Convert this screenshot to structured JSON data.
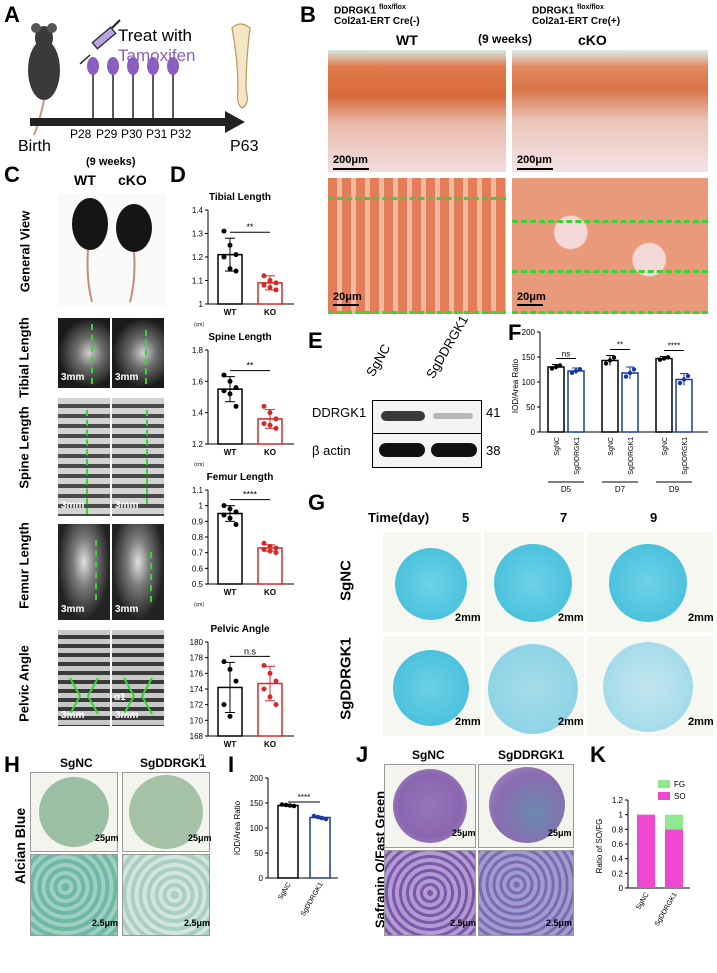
{
  "panels": {
    "A": {
      "label": "A",
      "title_line1": "Treat with",
      "title_line2": "Tamoxifen",
      "days": [
        "P28",
        "P29",
        "P30",
        "P31",
        "P32"
      ],
      "birth": "Birth",
      "end": "P63"
    },
    "B": {
      "label": "B",
      "wt_header1": "DDRGK1",
      "wt_sup": "flox/flox",
      "wt_header2": "Col2a1-ERT Cre(-)",
      "ko_header1": "DDRGK1",
      "ko_sup": "flox/flox",
      "ko_header2": "Col2a1-ERT Cre(+)",
      "weeks": "(9 weeks)",
      "wt": "WT",
      "ko": "cKO",
      "scale_top": "200μm",
      "scale_bottom": "20μm"
    },
    "C": {
      "label": "C",
      "weeks": "(9 weeks)",
      "wt": "WT",
      "ko": "cKO",
      "rows": [
        "General View",
        "Tibial Length",
        "Spine Length",
        "Femur Length",
        "Pelvic Angle"
      ],
      "scale": "3mm",
      "angle": "α1"
    },
    "D": {
      "label": "D"
    },
    "E": {
      "label": "E",
      "lanes": [
        "SgNC",
        "SgDDRGK1"
      ],
      "bands": [
        {
          "name": "DDRGK1",
          "kda": "41"
        },
        {
          "name": "β actin",
          "kda": "38"
        }
      ]
    },
    "F": {
      "label": "F"
    },
    "G": {
      "label": "G",
      "time": "Time(day)",
      "days": [
        "5",
        "7",
        "9"
      ],
      "rows": [
        "SgNC",
        "SgDDRGK1"
      ],
      "scale": "2mm"
    },
    "H": {
      "label": "H",
      "cols": [
        "SgNC",
        "SgDDRGK1"
      ],
      "row": "Alcian Blue",
      "scale_top": "25μm",
      "scale_bottom": "2.5μm"
    },
    "I": {
      "label": "I"
    },
    "J": {
      "label": "J",
      "cols": [
        "SgNC",
        "SgDDRGK1"
      ],
      "row": "Safranin O/Fast Green",
      "scale_top": "25μm",
      "scale_bottom": "2.5μm"
    },
    "K": {
      "label": "K"
    }
  },
  "chart_data": [
    {
      "id": "D1",
      "type": "bar",
      "title": "Tibial Length",
      "categories": [
        "WT",
        "KO"
      ],
      "values": [
        1.21,
        1.09
      ],
      "errors": [
        0.07,
        0.03
      ],
      "points": [
        [
          1.31,
          1.25,
          1.21,
          1.2,
          1.15,
          1.14
        ],
        [
          1.12,
          1.1,
          1.09,
          1.08,
          1.07,
          1.06
        ]
      ],
      "ylim": [
        1.0,
        1.4
      ],
      "yticks": [
        1.0,
        1.1,
        1.2,
        1.3,
        1.4
      ],
      "unit": "(cm)",
      "sig": "**",
      "colors": [
        "#000000",
        "#d62828"
      ]
    },
    {
      "id": "D2",
      "type": "bar",
      "title": "Spine Length",
      "categories": [
        "WT",
        "KO"
      ],
      "values": [
        1.55,
        1.36
      ],
      "errors": [
        0.08,
        0.06
      ],
      "points": [
        [
          1.64,
          1.6,
          1.56,
          1.54,
          1.52,
          1.44
        ],
        [
          1.44,
          1.4,
          1.36,
          1.33,
          1.32,
          1.3
        ]
      ],
      "ylim": [
        1.2,
        1.8
      ],
      "yticks": [
        1.2,
        1.4,
        1.6,
        1.8
      ],
      "unit": "(cm)",
      "sig": "**",
      "colors": [
        "#000000",
        "#d62828"
      ]
    },
    {
      "id": "D3",
      "type": "bar",
      "title": "Femur Length",
      "categories": [
        "WT",
        "KO"
      ],
      "values": [
        0.95,
        0.73
      ],
      "errors": [
        0.05,
        0.02
      ],
      "points": [
        [
          1.0,
          0.98,
          0.96,
          0.94,
          0.92,
          0.88
        ],
        [
          0.76,
          0.74,
          0.73,
          0.72,
          0.71,
          0.7
        ]
      ],
      "ylim": [
        0.5,
        1.1
      ],
      "yticks": [
        0.5,
        0.6,
        0.7,
        0.8,
        0.9,
        1.0,
        1.1
      ],
      "unit": "(cm)",
      "sig": "****",
      "colors": [
        "#000000",
        "#d62828"
      ]
    },
    {
      "id": "D4",
      "type": "bar",
      "title": "Pelvic Angle",
      "categories": [
        "WT",
        "KO"
      ],
      "values": [
        174.2,
        174.7
      ],
      "errors": [
        3.2,
        2.2
      ],
      "points": [
        [
          177.5,
          176.5,
          175,
          172,
          170.5
        ],
        [
          177,
          176,
          175,
          174,
          173,
          172
        ]
      ],
      "ylim": [
        168,
        180
      ],
      "yticks": [
        168,
        170,
        172,
        174,
        176,
        178,
        180
      ],
      "unit": "(°)",
      "sig": "n.s",
      "colors": [
        "#000000",
        "#d62828"
      ]
    },
    {
      "id": "F",
      "type": "bar",
      "ylabel": "IOD/Area Ratio",
      "groups": [
        "D5",
        "D7",
        "D9"
      ],
      "categories": [
        "SgNC",
        "SgDDRGK1"
      ],
      "values": [
        [
          130,
          122
        ],
        [
          143,
          118
        ],
        [
          147,
          105
        ]
      ],
      "errors": [
        [
          5,
          6
        ],
        [
          10,
          12
        ],
        [
          4,
          12
        ]
      ],
      "ylim": [
        0,
        200
      ],
      "yticks": [
        0,
        50,
        100,
        150,
        200
      ],
      "sig": [
        "ns",
        "**",
        "****"
      ],
      "colors": [
        "#000000",
        "#1a3a9c"
      ]
    },
    {
      "id": "I",
      "type": "bar",
      "ylabel": "IOD/Area Ratio",
      "categories": [
        "SgNC",
        "SgDDRGK1"
      ],
      "values": [
        145,
        121
      ],
      "errors": [
        3,
        4
      ],
      "points": [
        [
          147,
          146,
          145,
          144
        ],
        [
          124,
          122,
          120,
          118
        ]
      ],
      "ylim": [
        0,
        200
      ],
      "yticks": [
        0,
        50,
        100,
        150,
        200
      ],
      "sig": "****",
      "colors": [
        "#000000",
        "#1a3a9c"
      ]
    },
    {
      "id": "K",
      "type": "bar",
      "stacked": true,
      "ylabel": "Ratio of SO/FG",
      "categories": [
        "SgNC",
        "SgDDRGK1"
      ],
      "series": [
        {
          "name": "SO",
          "values": [
            1.0,
            0.8
          ],
          "color": "#f048d0"
        },
        {
          "name": "FG",
          "values": [
            0.0,
            0.2
          ],
          "color": "#90e890"
        }
      ],
      "ylim": [
        0,
        1.2
      ],
      "yticks": [
        0.0,
        0.2,
        0.4,
        0.6,
        0.8,
        1.0,
        1.2
      ],
      "legend": "top-right"
    }
  ]
}
